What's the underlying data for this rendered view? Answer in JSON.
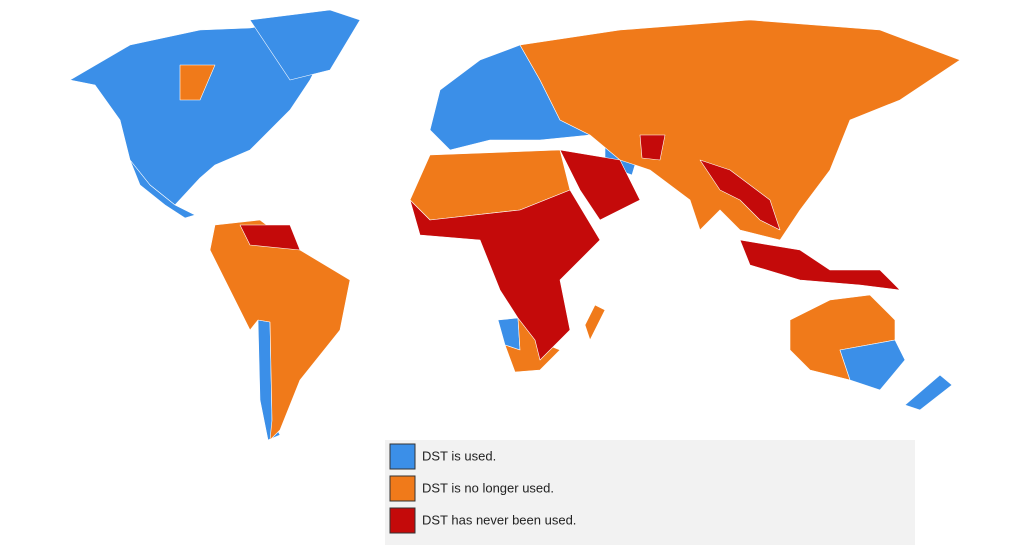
{
  "legend": {
    "items": [
      {
        "label": "DST is used.",
        "color": "#3b8fe8"
      },
      {
        "label": "DST is no longer used.",
        "color": "#f07a1a"
      },
      {
        "label": "DST has never been used.",
        "color": "#c40a0a"
      }
    ]
  }
}
